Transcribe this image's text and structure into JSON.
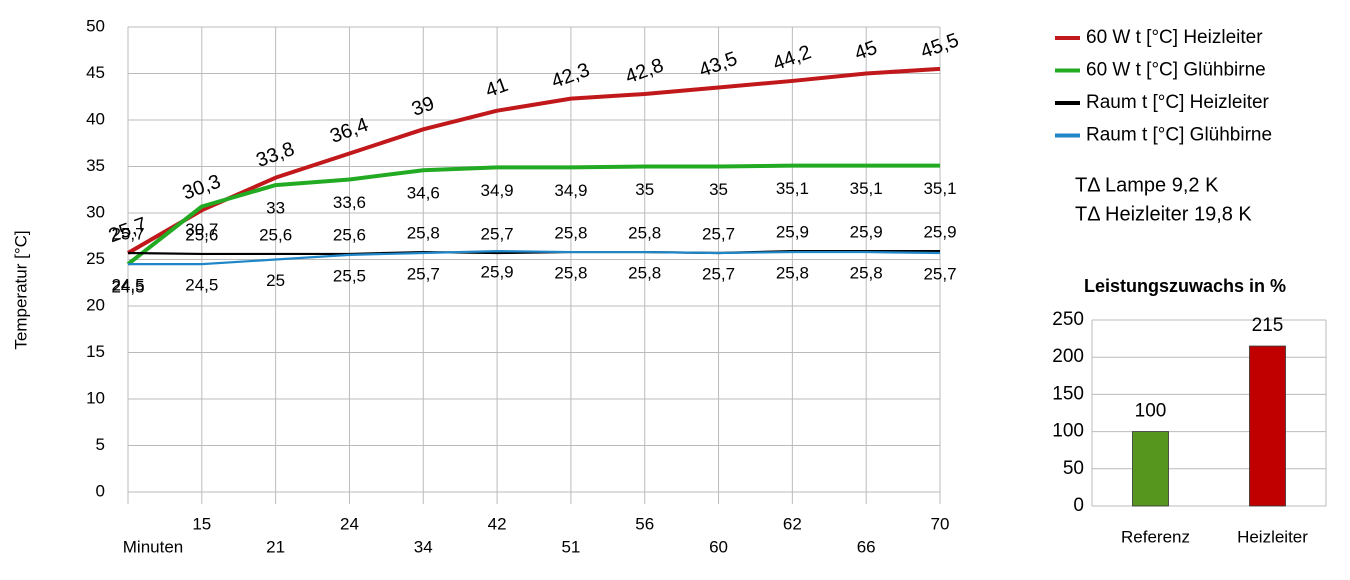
{
  "chart_data": [
    {
      "type": "line",
      "y_label": "Temperatur [°C]",
      "x_label": "Minuten",
      "categories": [
        null,
        "15",
        "21",
        "24",
        "34",
        "42",
        "51",
        "56",
        "60",
        "62",
        "66",
        "70"
      ],
      "ylim": [
        0,
        50
      ],
      "yticks": [
        0,
        5,
        10,
        15,
        20,
        25,
        30,
        35,
        40,
        45,
        50
      ],
      "grid": true,
      "series": [
        {
          "name": "60 W t [°C] Heizleiter",
          "color": "#c0181b",
          "label_color": "#8b1a1a",
          "values": [
            25.7,
            30.3,
            33.8,
            36.4,
            39,
            41,
            42.3,
            42.8,
            43.5,
            44.2,
            45,
            45.5
          ],
          "value_labels": [
            "25,7",
            "30,3",
            "33,8",
            "36,4",
            "39",
            "41",
            "42,3",
            "42,8",
            "43,5",
            "44,2",
            "45",
            "45,5"
          ]
        },
        {
          "name": "60 W t [°C] Glühbirne",
          "color": "#22aa22",
          "label_color": "#2e7d1e",
          "values": [
            24.5,
            30.7,
            33,
            33.6,
            34.6,
            34.9,
            34.9,
            35,
            35,
            35.1,
            35.1,
            35.1
          ],
          "value_labels": [
            "24,5",
            "30,7",
            "33",
            "33,6",
            "34,6",
            "34,9",
            "34,9",
            "35",
            "35",
            "35,1",
            "35,1",
            "35,1"
          ]
        },
        {
          "name": "Raum t [°C] Heizleiter",
          "color": "#000000",
          "label_color": "#000000",
          "values": [
            25.7,
            25.6,
            25.6,
            25.6,
            25.8,
            25.7,
            25.8,
            25.8,
            25.7,
            25.9,
            25.9,
            25.9
          ],
          "value_labels": [
            "25,7",
            "25,6",
            "25,6",
            "25,6",
            "25,8",
            "25,7",
            "25,8",
            "25,8",
            "25,7",
            "25,9",
            "25,9",
            "25,9"
          ]
        },
        {
          "name": "Raum t [°C] Glühbirne",
          "color": "#1f86c8",
          "label_color": "#1c1cc8",
          "values": [
            24.5,
            24.5,
            25,
            25.5,
            25.7,
            25.9,
            25.8,
            25.8,
            25.7,
            25.8,
            25.8,
            25.7
          ],
          "value_labels": [
            "24,5",
            "24,5",
            "25",
            "25,5",
            "25,7",
            "25,9",
            "25,8",
            "25,8",
            "25,7",
            "25,8",
            "25,8",
            "25,7"
          ]
        }
      ],
      "annotations": [
        "TΔ Lampe  9,2 K",
        "TΔ Heizleiter  19,8 K"
      ]
    },
    {
      "type": "bar",
      "title": "Leistungszuwachs in %",
      "categories": [
        "Referenz",
        "Heizleiter"
      ],
      "values": [
        100,
        215
      ],
      "colors": [
        "#56961e",
        "#c00000"
      ],
      "ylim": [
        0,
        250
      ],
      "yticks": [
        0,
        50,
        100,
        150,
        200,
        250
      ],
      "grid": true
    }
  ]
}
